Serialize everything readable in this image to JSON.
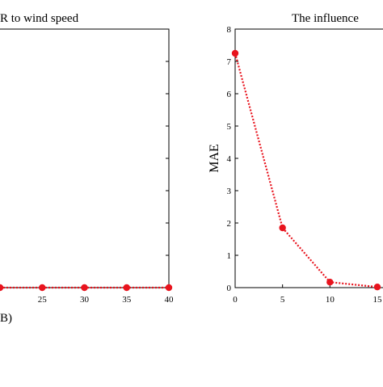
{
  "chart_data": [
    {
      "type": "line",
      "title": "R to wind speed",
      "panel_label": "B)",
      "xlabel": "",
      "ylabel": "",
      "x_ticks": [
        "25",
        "30",
        "35",
        "40"
      ],
      "xlim": [
        20,
        40
      ],
      "ylim": [
        0,
        8
      ],
      "grid": false,
      "series": [
        {
          "x": [
            20,
            25,
            30,
            35,
            40
          ],
          "values": [
            0,
            0,
            0,
            0,
            0
          ],
          "color": "#e8141e"
        }
      ]
    },
    {
      "type": "line",
      "title": "The influence",
      "xlabel": "",
      "ylabel": "MAE",
      "x_ticks": [
        "0",
        "5",
        "10",
        "15"
      ],
      "y_ticks": [
        "0",
        "1",
        "2",
        "3",
        "4",
        "5",
        "6",
        "7",
        "8"
      ],
      "xlim": [
        0,
        20
      ],
      "ylim": [
        0,
        8
      ],
      "grid": false,
      "series": [
        {
          "x": [
            0,
            5,
            10,
            15
          ],
          "values": [
            7.25,
            1.85,
            0.17,
            0.02
          ],
          "color": "#e8141e"
        }
      ]
    }
  ]
}
